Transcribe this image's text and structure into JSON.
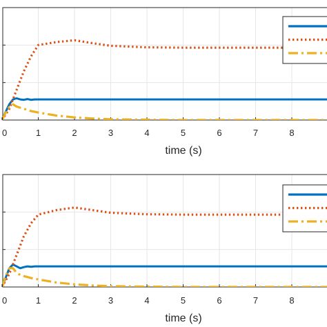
{
  "chart_data": [
    {
      "type": "line",
      "xlabel": "time (s)",
      "xlim": [
        0,
        9
      ],
      "ylim": [
        0,
        3
      ],
      "grid": true,
      "legend_placement": "top-right",
      "x_ticks": [
        "0",
        "1",
        "2",
        "3",
        "4",
        "5",
        "6",
        "7",
        "8"
      ],
      "series": [
        {
          "color": "#0072BD",
          "style": "solid",
          "points": [
            [
              0,
              0
            ],
            [
              0.1,
              0.22
            ],
            [
              0.2,
              0.42
            ],
            [
              0.3,
              0.55
            ],
            [
              0.4,
              0.58
            ],
            [
              0.5,
              0.55
            ],
            [
              0.6,
              0.54
            ],
            [
              0.7,
              0.56
            ],
            [
              0.8,
              0.54
            ],
            [
              0.9,
              0.55
            ],
            [
              1,
              0.55
            ],
            [
              2,
              0.55
            ],
            [
              3,
              0.55
            ],
            [
              4,
              0.55
            ],
            [
              5,
              0.55
            ],
            [
              6,
              0.55
            ],
            [
              7,
              0.55
            ],
            [
              8,
              0.55
            ],
            [
              9,
              0.55
            ]
          ]
        },
        {
          "color": "#D95319",
          "style": "dotted",
          "points": [
            [
              0,
              0
            ],
            [
              0.2,
              0.3
            ],
            [
              0.4,
              0.8
            ],
            [
              0.6,
              1.3
            ],
            [
              0.8,
              1.7
            ],
            [
              1,
              2.0
            ],
            [
              1.5,
              2.08
            ],
            [
              2,
              2.13
            ],
            [
              2.5,
              2.05
            ],
            [
              3,
              1.98
            ],
            [
              4,
              1.94
            ],
            [
              5,
              1.93
            ],
            [
              6,
              1.93
            ],
            [
              7,
              1.93
            ],
            [
              8,
              1.93
            ],
            [
              9,
              1.93
            ]
          ]
        },
        {
          "color": "#EDB120",
          "style": "dashdot",
          "points": [
            [
              0,
              0
            ],
            [
              0.1,
              0.2
            ],
            [
              0.2,
              0.35
            ],
            [
              0.3,
              0.42
            ],
            [
              0.4,
              0.36
            ],
            [
              0.5,
              0.33
            ],
            [
              0.6,
              0.3
            ],
            [
              0.8,
              0.24
            ],
            [
              1,
              0.2
            ],
            [
              1.5,
              0.12
            ],
            [
              2,
              0.07
            ],
            [
              2.5,
              0.04
            ],
            [
              3,
              0.02
            ],
            [
              4,
              0.01
            ],
            [
              5,
              0.0
            ],
            [
              6,
              0.0
            ],
            [
              7,
              0.0
            ],
            [
              8,
              0.0
            ],
            [
              9,
              0.0
            ]
          ]
        }
      ]
    },
    {
      "type": "line",
      "xlabel": "time (s)",
      "xlim": [
        0,
        9
      ],
      "ylim": [
        0,
        3
      ],
      "grid": true,
      "legend_placement": "top-right",
      "x_ticks": [
        "0",
        "1",
        "2",
        "3",
        "4",
        "5",
        "6",
        "7",
        "8"
      ],
      "series": [
        {
          "color": "#0072BD",
          "style": "solid",
          "points": [
            [
              0,
              0
            ],
            [
              0.1,
              0.25
            ],
            [
              0.2,
              0.5
            ],
            [
              0.3,
              0.6
            ],
            [
              0.4,
              0.55
            ],
            [
              0.5,
              0.5
            ],
            [
              0.6,
              0.53
            ],
            [
              0.7,
              0.55
            ],
            [
              0.8,
              0.54
            ],
            [
              0.9,
              0.55
            ],
            [
              1,
              0.55
            ],
            [
              2,
              0.55
            ],
            [
              3,
              0.55
            ],
            [
              4,
              0.55
            ],
            [
              5,
              0.55
            ],
            [
              6,
              0.55
            ],
            [
              7,
              0.55
            ],
            [
              8,
              0.55
            ],
            [
              9,
              0.55
            ]
          ]
        },
        {
          "color": "#D95319",
          "style": "dotted",
          "points": [
            [
              0,
              0
            ],
            [
              0.2,
              0.35
            ],
            [
              0.4,
              0.85
            ],
            [
              0.6,
              1.35
            ],
            [
              0.8,
              1.7
            ],
            [
              1,
              1.93
            ],
            [
              1.5,
              2.05
            ],
            [
              2,
              2.12
            ],
            [
              2.5,
              2.05
            ],
            [
              3,
              1.98
            ],
            [
              4,
              1.94
            ],
            [
              5,
              1.93
            ],
            [
              6,
              1.93
            ],
            [
              7,
              1.93
            ],
            [
              8,
              1.93
            ],
            [
              9,
              1.93
            ]
          ]
        },
        {
          "color": "#EDB120",
          "style": "dashdot",
          "points": [
            [
              0,
              0
            ],
            [
              0.1,
              0.3
            ],
            [
              0.2,
              0.5
            ],
            [
              0.3,
              0.5
            ],
            [
              0.4,
              0.38
            ],
            [
              0.5,
              0.32
            ],
            [
              0.6,
              0.29
            ],
            [
              0.8,
              0.24
            ],
            [
              1,
              0.2
            ],
            [
              1.5,
              0.12
            ],
            [
              2,
              0.07
            ],
            [
              2.5,
              0.04
            ],
            [
              3,
              0.02
            ],
            [
              4,
              0.01
            ],
            [
              5,
              0.0
            ],
            [
              6,
              0.0
            ],
            [
              7,
              0.0
            ],
            [
              8,
              0.0
            ],
            [
              9,
              0.0
            ]
          ]
        }
      ]
    }
  ]
}
